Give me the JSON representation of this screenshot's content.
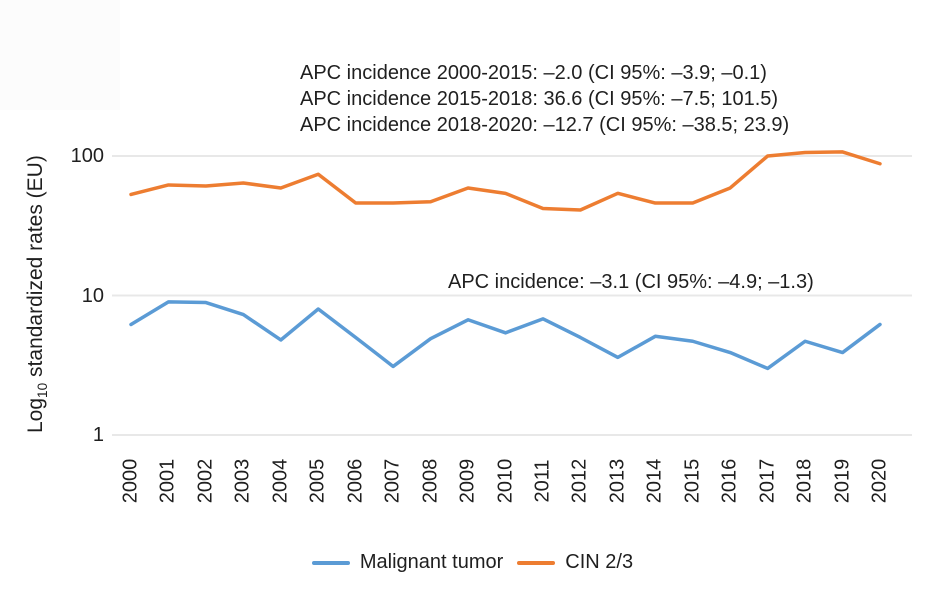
{
  "figure": {
    "background": "#ffffff",
    "text_color": "#1f1f1f",
    "gridline_color": "#e8e8e8"
  },
  "annotations": {
    "cin_block": {
      "lines": [
        "APC incidence 2000-2015: –2.0 (CI 95%: –3.9; –0.1)",
        "APC incidence 2015-2018: 36.6 (CI 95%: –7.5; 101.5)",
        "APC incidence 2018-2020: –12.7 (CI 95%: –38.5; 23.9)"
      ]
    },
    "malignant_line": "APC incidence: –3.1 (CI 95%: –4.9; –1.3)"
  },
  "y_axis": {
    "label_prefix": "Log",
    "label_sub": "10",
    "label_suffix": " standardized rates (EU)"
  },
  "legend": [
    {
      "label": "Malignant tumor",
      "color": "#5B9BD5"
    },
    {
      "label": "CIN 2/3",
      "color": "#ED7D31"
    }
  ],
  "chart_data": {
    "type": "line",
    "title": "",
    "xlabel": "",
    "ylabel": "Log10 standardized rates (EU)",
    "y_scale": "log10",
    "ylim": [
      1,
      200
    ],
    "y_ticks": [
      1,
      10,
      100
    ],
    "grid": true,
    "legend_position": "bottom",
    "x": [
      2000,
      2001,
      2002,
      2003,
      2004,
      2005,
      2006,
      2007,
      2008,
      2009,
      2010,
      2011,
      2012,
      2013,
      2014,
      2015,
      2016,
      2017,
      2018,
      2019,
      2020
    ],
    "series": [
      {
        "name": "Malignant tumor",
        "color": "#5B9BD5",
        "values": [
          6.2,
          9.0,
          8.9,
          7.3,
          4.8,
          8.0,
          5.0,
          3.1,
          4.9,
          6.7,
          5.4,
          6.8,
          5.0,
          3.6,
          5.1,
          4.7,
          3.9,
          3.0,
          4.7,
          3.9,
          6.2
        ]
      },
      {
        "name": "CIN 2/3",
        "color": "#ED7D31",
        "values": [
          53,
          62,
          61,
          64,
          59,
          74,
          46,
          46,
          47,
          59,
          54,
          42,
          41,
          54,
          46,
          46,
          59,
          100,
          106,
          107,
          88
        ]
      }
    ]
  }
}
